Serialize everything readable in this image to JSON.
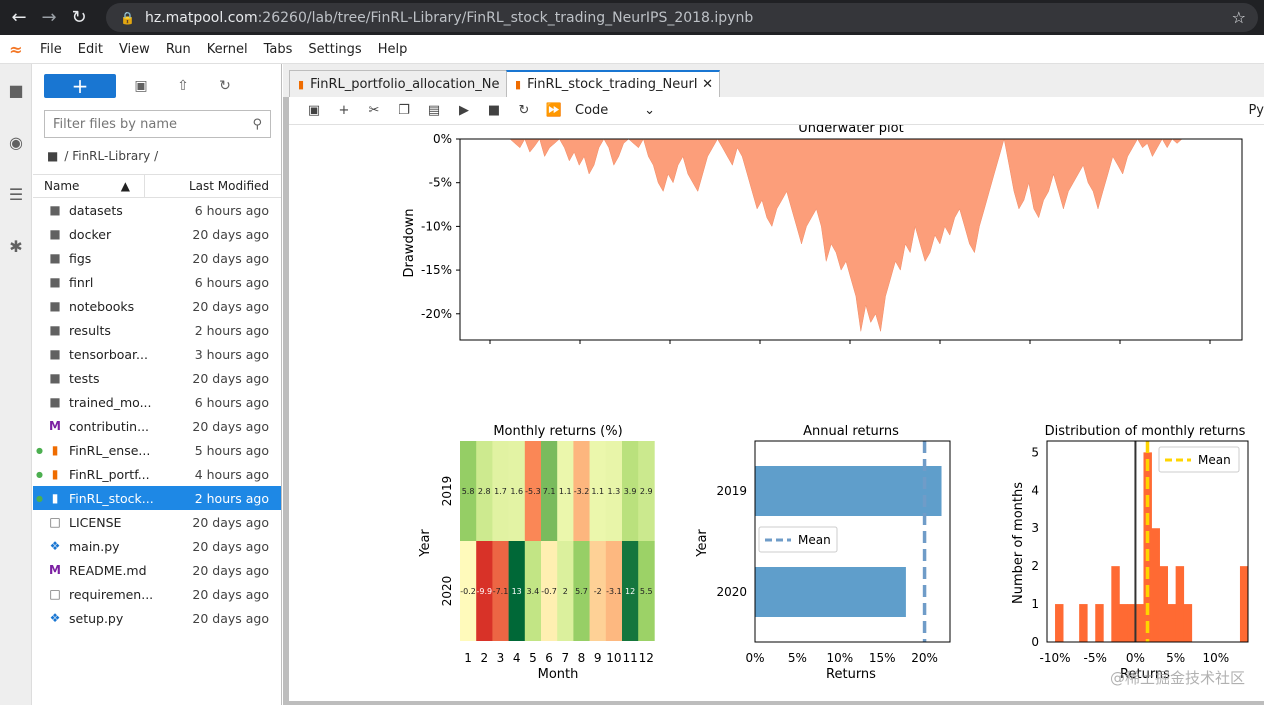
{
  "browser": {
    "url_host": "hz.matpool.com",
    "url_rest": ":26260/lab/tree/FinRL-Library/FinRL_stock_trading_NeurIPS_2018.ipynb"
  },
  "menu": [
    "File",
    "Edit",
    "View",
    "Run",
    "Kernel",
    "Tabs",
    "Settings",
    "Help"
  ],
  "filebrowser": {
    "new_label": "+",
    "filter_placeholder": "Filter files by name",
    "breadcrumb": "/ FinRL-Library /",
    "col_name": "Name",
    "col_modified": "Last Modified",
    "files": [
      {
        "name": "datasets",
        "modified": "6 hours ago",
        "type": "folder"
      },
      {
        "name": "docker",
        "modified": "20 days ago",
        "type": "folder"
      },
      {
        "name": "figs",
        "modified": "20 days ago",
        "type": "folder"
      },
      {
        "name": "finrl",
        "modified": "6 hours ago",
        "type": "folder"
      },
      {
        "name": "notebooks",
        "modified": "20 days ago",
        "type": "folder"
      },
      {
        "name": "results",
        "modified": "2 hours ago",
        "type": "folder"
      },
      {
        "name": "tensorboar...",
        "modified": "3 hours ago",
        "type": "folder"
      },
      {
        "name": "tests",
        "modified": "20 days ago",
        "type": "folder"
      },
      {
        "name": "trained_mo...",
        "modified": "6 hours ago",
        "type": "folder"
      },
      {
        "name": "contributin...",
        "modified": "20 days ago",
        "type": "md"
      },
      {
        "name": "FinRL_ense...",
        "modified": "5 hours ago",
        "type": "notebook"
      },
      {
        "name": "FinRL_portf...",
        "modified": "4 hours ago",
        "type": "notebook"
      },
      {
        "name": "FinRL_stock...",
        "modified": "2 hours ago",
        "type": "notebook"
      },
      {
        "name": "LICENSE",
        "modified": "20 days ago",
        "type": "file"
      },
      {
        "name": "main.py",
        "modified": "20 days ago",
        "type": "python"
      },
      {
        "name": "README.md",
        "modified": "20 days ago",
        "type": "md"
      },
      {
        "name": "requiremen...",
        "modified": "20 days ago",
        "type": "file"
      },
      {
        "name": "setup.py",
        "modified": "20 days ago",
        "type": "python"
      }
    ]
  },
  "tabs": [
    {
      "label": "FinRL_portfolio_allocation_Ne"
    },
    {
      "label": "FinRL_stock_trading_NeurIPS"
    }
  ],
  "toolbar": {
    "cell_type": "Code",
    "kernel": "Py"
  },
  "watermark": "@稀土掘金技术社区",
  "chart_data": [
    {
      "type": "area",
      "title": "Underwater plot",
      "ylabel": "Drawdown",
      "yticks": [
        "0%",
        "-5%",
        "-10%",
        "-15%",
        "-20%"
      ],
      "ylim": [
        -23,
        0
      ],
      "description_series": "drawdown (%) over time",
      "values": [
        0,
        -0.5,
        -1,
        0,
        -1.5,
        -0.8,
        0,
        -2,
        -1,
        -0.5,
        0,
        -1,
        -2.5,
        -1.5,
        -3,
        -2,
        -4,
        -3,
        -1,
        0,
        -1,
        -3,
        -2,
        -0.5,
        0,
        -0.5,
        -1,
        0,
        -2,
        -3,
        -5,
        -6,
        -4,
        -5,
        -3,
        -2,
        -4,
        -5,
        -6,
        -4,
        -2,
        -1,
        0,
        -1,
        -2,
        -3,
        -1,
        -2,
        -4,
        -6,
        -8,
        -7,
        -9,
        -10,
        -8,
        -7,
        -6,
        -8,
        -10,
        -12,
        -10,
        -9,
        -8,
        -10,
        -14,
        -12,
        -13,
        -15,
        -14,
        -16,
        -18,
        -22,
        -19,
        -21,
        -20,
        -22,
        -18,
        -16,
        -14,
        -15,
        -12,
        -13,
        -10,
        -12,
        -14,
        -13,
        -11,
        -12,
        -10,
        -11,
        -9,
        -8,
        -10,
        -12,
        -13,
        -10,
        -8,
        -6,
        -4,
        -2,
        0,
        -3,
        -6,
        -8,
        -7,
        -5,
        -8,
        -9,
        -7,
        -6,
        -4,
        -6,
        -8,
        -6,
        -5,
        -4,
        -3,
        -5,
        -6,
        -8,
        -6,
        -4,
        -2,
        -3,
        -4,
        -2,
        -1,
        0,
        -1,
        -0.5,
        -2,
        -1,
        0,
        -1,
        0,
        -0.5,
        0
      ]
    },
    {
      "type": "heatmap",
      "title": "Monthly returns (%)",
      "xlabel": "Month",
      "ylabel": "Year",
      "categories": [
        "1",
        "2",
        "3",
        "4",
        "5",
        "6",
        "7",
        "8",
        "9",
        "10",
        "11",
        "12"
      ],
      "series": [
        {
          "name": "2019",
          "values": [
            5.8,
            2.8,
            1.7,
            1.6,
            -5.3,
            7.1,
            1.1,
            -3.2,
            1.1,
            1.3,
            3.9,
            2.9
          ]
        },
        {
          "name": "2020",
          "values": [
            -0.2,
            -9.9,
            -7.1,
            13,
            3.4,
            -0.7,
            2,
            5.7,
            -2,
            -3.1,
            12,
            5.5
          ]
        }
      ],
      "labels": [
        [
          "5.8",
          "2.8",
          "1.7",
          "1.6",
          "-5.3",
          "7.1",
          "1.1",
          "-3.2",
          "1.1",
          "1.3",
          "3.9",
          "2.9"
        ],
        [
          "-0.2",
          "-9.9",
          "-7.1",
          "13",
          "3.4",
          "-0.7",
          "2",
          "5.7",
          "-2",
          "-3.1",
          "12",
          "5.5"
        ]
      ]
    },
    {
      "type": "bar",
      "title": "Annual returns",
      "xlabel": "Returns",
      "ylabel": "Year",
      "categories": [
        "2019",
        "2020"
      ],
      "values": [
        22,
        17.8
      ],
      "mean": 20,
      "xlim": [
        0,
        23
      ],
      "xticks": [
        "0%",
        "5%",
        "10%",
        "15%",
        "20%"
      ],
      "legend": "Mean"
    },
    {
      "type": "bar",
      "title": "Distribution of monthly returns",
      "xlabel": "Returns",
      "ylabel": "Number of months",
      "x": [
        -10,
        -8,
        -7,
        -5,
        -4,
        -3,
        -2,
        -1,
        0,
        1,
        2,
        3,
        4,
        5,
        6,
        12,
        13
      ],
      "values": [
        1,
        0,
        1,
        1,
        0,
        2,
        1,
        1,
        1,
        5,
        3,
        2,
        1,
        2,
        1,
        0,
        2
      ],
      "mean": 1.5,
      "xlim": [
        -11,
        14
      ],
      "ylim": [
        0,
        5.3
      ],
      "xticks": [
        "-10%",
        "-5%",
        "0%",
        "5%",
        "10%"
      ],
      "yticks": [
        "0",
        "1",
        "2",
        "3",
        "4",
        "5"
      ],
      "legend": "Mean"
    }
  ]
}
